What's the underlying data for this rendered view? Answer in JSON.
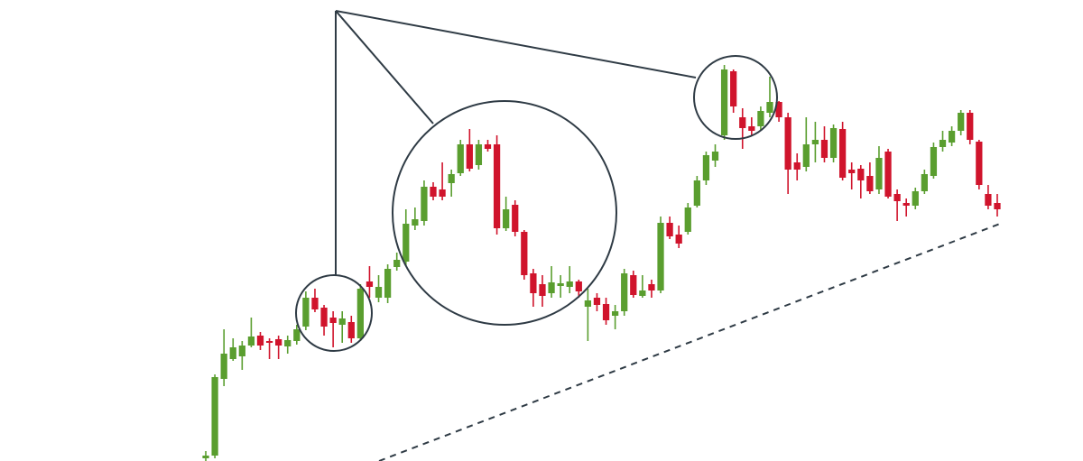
{
  "chart_data": {
    "type": "candlestick",
    "ylim": [
      0,
      511
    ],
    "up_color": "#5a9e2f",
    "down_color": "#d0142c",
    "open": [
      3,
      6,
      91,
      113,
      116,
      128,
      139,
      133,
      135,
      127,
      133,
      149,
      181,
      170,
      159,
      151,
      154,
      136,
      199,
      181,
      181,
      215,
      221,
      261,
      266,
      304,
      301,
      308,
      319,
      351,
      328,
      351,
      351,
      258,
      284,
      254,
      208,
      196,
      186,
      194,
      193,
      199,
      171,
      181,
      174,
      161,
      166,
      206,
      183,
      196,
      189,
      264,
      251,
      254,
      283,
      311,
      333,
      361,
      432,
      381,
      371,
      371,
      386,
      398,
      381,
      331,
      326,
      351,
      356,
      336,
      368,
      323,
      324,
      316,
      301,
      343,
      296,
      286,
      283,
      299,
      316,
      348,
      353,
      366,
      386,
      354,
      296,
      286
    ],
    "high": [
      11,
      96,
      146,
      136,
      133,
      159,
      143,
      136,
      139,
      139,
      151,
      188,
      191,
      173,
      166,
      166,
      161,
      196,
      216,
      206,
      218,
      231,
      279,
      281,
      311,
      309,
      331,
      323,
      356,
      368,
      356,
      356,
      361,
      293,
      289,
      256,
      213,
      206,
      216,
      206,
      216,
      201,
      191,
      186,
      181,
      173,
      213,
      211,
      206,
      201,
      271,
      271,
      261,
      286,
      316,
      343,
      351,
      439,
      434,
      391,
      381,
      393,
      426,
      399,
      386,
      341,
      381,
      376,
      371,
      373,
      376,
      331,
      328,
      331,
      349,
      346,
      301,
      291,
      303,
      323,
      353,
      366,
      371,
      389,
      389,
      356,
      306,
      296
    ],
    "low": [
      0,
      3,
      83,
      111,
      101,
      126,
      123,
      113,
      113,
      119,
      129,
      145,
      165,
      139,
      126,
      131,
      131,
      133,
      181,
      176,
      175,
      211,
      216,
      256,
      261,
      289,
      289,
      293,
      316,
      321,
      323,
      343,
      251,
      255,
      249,
      201,
      171,
      171,
      181,
      181,
      186,
      181,
      133,
      166,
      151,
      146,
      161,
      181,
      181,
      181,
      186,
      246,
      236,
      251,
      281,
      306,
      326,
      356,
      386,
      346,
      361,
      366,
      381,
      376,
      296,
      311,
      321,
      331,
      331,
      331,
      311,
      301,
      291,
      296,
      296,
      291,
      266,
      271,
      279,
      296,
      313,
      343,
      349,
      361,
      351,
      301,
      279,
      271
    ],
    "close": [
      6,
      93,
      119,
      126,
      128,
      138,
      128,
      131,
      128,
      134,
      146,
      181,
      168,
      149,
      153,
      158,
      136,
      191,
      193,
      193,
      213,
      223,
      263,
      268,
      304,
      293,
      293,
      318,
      351,
      324,
      351,
      346,
      258,
      279,
      254,
      206,
      186,
      183,
      198,
      197,
      199,
      188,
      178,
      173,
      156,
      166,
      208,
      184,
      189,
      189,
      264,
      249,
      241,
      281,
      311,
      339,
      343,
      434,
      393,
      369,
      366,
      388,
      398,
      381,
      323,
      323,
      351,
      356,
      336,
      369,
      314,
      319,
      311,
      299,
      336,
      293,
      288,
      283,
      299,
      318,
      348,
      356,
      366,
      386,
      356,
      306,
      283,
      279
    ]
  }
}
